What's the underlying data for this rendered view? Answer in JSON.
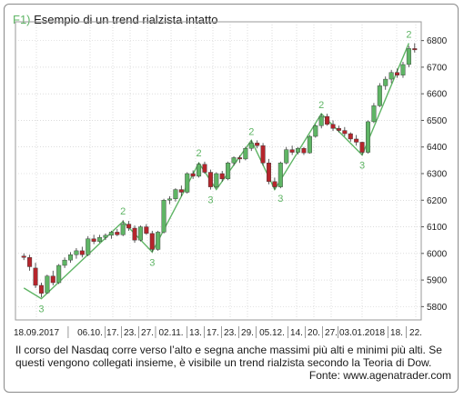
{
  "figure": {
    "label": "F1)",
    "title": "Esempio di un trend rialzista intatto",
    "caption": "Il corso del Nasdaq corre verso l’alto e segna anche massimi più alti e minimi più alti. Se questi vengono collegati insieme, è visibile un trend rialzista secondo la Teoria di Dow.",
    "source": "Fonte: www.agenatrader.com"
  },
  "colors": {
    "up": "#5fb565",
    "down": "#b5252c",
    "trendline": "#5fb565",
    "grid": "#c8c8c8",
    "wave_label": "#5fb565"
  },
  "chart_data": {
    "type": "candlestick",
    "title": "",
    "xlabel": "",
    "ylabel": "",
    "ylim": [
      5750,
      6850
    ],
    "y_ticks": [
      5800,
      5900,
      6000,
      6100,
      6200,
      6300,
      6400,
      6500,
      6600,
      6700,
      6800
    ],
    "grid": true,
    "x_tick_labels": [
      "18.09.2017",
      "06.10.",
      "17.",
      "23.",
      "27.",
      "02.11.",
      "13.",
      "17.",
      "23.",
      "29.",
      "05.12.",
      "14.",
      "20.",
      "27.",
      "03.01.2018",
      "18.",
      "22."
    ],
    "ohlc": [
      {
        "o": 5990,
        "h": 6000,
        "l": 5975,
        "c": 5985
      },
      {
        "o": 5985,
        "h": 5995,
        "l": 5935,
        "c": 5950
      },
      {
        "o": 5945,
        "h": 5965,
        "l": 5870,
        "c": 5880
      },
      {
        "o": 5880,
        "h": 5890,
        "l": 5835,
        "c": 5850
      },
      {
        "o": 5852,
        "h": 5920,
        "l": 5848,
        "c": 5915
      },
      {
        "o": 5915,
        "h": 5935,
        "l": 5880,
        "c": 5890
      },
      {
        "o": 5890,
        "h": 5960,
        "l": 5885,
        "c": 5955
      },
      {
        "o": 5955,
        "h": 5985,
        "l": 5945,
        "c": 5975
      },
      {
        "o": 5975,
        "h": 6005,
        "l": 5965,
        "c": 5995
      },
      {
        "o": 5995,
        "h": 6020,
        "l": 5980,
        "c": 6010
      },
      {
        "o": 6010,
        "h": 6025,
        "l": 5985,
        "c": 5995
      },
      {
        "o": 5995,
        "h": 6065,
        "l": 5990,
        "c": 6055
      },
      {
        "o": 6055,
        "h": 6070,
        "l": 6035,
        "c": 6045
      },
      {
        "o": 6045,
        "h": 6070,
        "l": 6040,
        "c": 6060
      },
      {
        "o": 6060,
        "h": 6075,
        "l": 6050,
        "c": 6068
      },
      {
        "o": 6068,
        "h": 6085,
        "l": 6055,
        "c": 6080
      },
      {
        "o": 6080,
        "h": 6092,
        "l": 6065,
        "c": 6070
      },
      {
        "o": 6070,
        "h": 6125,
        "l": 6065,
        "c": 6110
      },
      {
        "o": 6110,
        "h": 6122,
        "l": 6085,
        "c": 6095
      },
      {
        "o": 6095,
        "h": 6105,
        "l": 6040,
        "c": 6050
      },
      {
        "o": 6050,
        "h": 6105,
        "l": 6045,
        "c": 6100
      },
      {
        "o": 6100,
        "h": 6110,
        "l": 6070,
        "c": 6075
      },
      {
        "o": 6075,
        "h": 6085,
        "l": 6005,
        "c": 6015
      },
      {
        "o": 6015,
        "h": 6085,
        "l": 6010,
        "c": 6080
      },
      {
        "o": 6080,
        "h": 6205,
        "l": 6075,
        "c": 6200
      },
      {
        "o": 6200,
        "h": 6215,
        "l": 6185,
        "c": 6205
      },
      {
        "o": 6205,
        "h": 6245,
        "l": 6195,
        "c": 6240
      },
      {
        "o": 6240,
        "h": 6255,
        "l": 6215,
        "c": 6230
      },
      {
        "o": 6230,
        "h": 6305,
        "l": 6225,
        "c": 6300
      },
      {
        "o": 6300,
        "h": 6312,
        "l": 6280,
        "c": 6290
      },
      {
        "o": 6290,
        "h": 6340,
        "l": 6285,
        "c": 6335
      },
      {
        "o": 6335,
        "h": 6345,
        "l": 6300,
        "c": 6305
      },
      {
        "o": 6305,
        "h": 6315,
        "l": 6240,
        "c": 6250
      },
      {
        "o": 6250,
        "h": 6305,
        "l": 6245,
        "c": 6300
      },
      {
        "o": 6300,
        "h": 6310,
        "l": 6270,
        "c": 6280
      },
      {
        "o": 6280,
        "h": 6345,
        "l": 6275,
        "c": 6340
      },
      {
        "o": 6340,
        "h": 6365,
        "l": 6330,
        "c": 6360
      },
      {
        "o": 6360,
        "h": 6368,
        "l": 6340,
        "c": 6355
      },
      {
        "o": 6355,
        "h": 6400,
        "l": 6350,
        "c": 6395
      },
      {
        "o": 6395,
        "h": 6425,
        "l": 6385,
        "c": 6415
      },
      {
        "o": 6415,
        "h": 6425,
        "l": 6395,
        "c": 6405
      },
      {
        "o": 6405,
        "h": 6415,
        "l": 6330,
        "c": 6340
      },
      {
        "o": 6340,
        "h": 6355,
        "l": 6260,
        "c": 6270
      },
      {
        "o": 6270,
        "h": 6285,
        "l": 6240,
        "c": 6250
      },
      {
        "o": 6250,
        "h": 6345,
        "l": 6245,
        "c": 6340
      },
      {
        "o": 6340,
        "h": 6400,
        "l": 6335,
        "c": 6390
      },
      {
        "o": 6390,
        "h": 6405,
        "l": 6370,
        "c": 6380
      },
      {
        "o": 6380,
        "h": 6400,
        "l": 6372,
        "c": 6395
      },
      {
        "o": 6395,
        "h": 6400,
        "l": 6370,
        "c": 6378
      },
      {
        "o": 6378,
        "h": 6445,
        "l": 6375,
        "c": 6440
      },
      {
        "o": 6440,
        "h": 6485,
        "l": 6435,
        "c": 6480
      },
      {
        "o": 6480,
        "h": 6525,
        "l": 6470,
        "c": 6515
      },
      {
        "o": 6515,
        "h": 6525,
        "l": 6480,
        "c": 6485
      },
      {
        "o": 6485,
        "h": 6500,
        "l": 6460,
        "c": 6470
      },
      {
        "o": 6470,
        "h": 6480,
        "l": 6455,
        "c": 6462
      },
      {
        "o": 6462,
        "h": 6475,
        "l": 6440,
        "c": 6450
      },
      {
        "o": 6450,
        "h": 6455,
        "l": 6420,
        "c": 6430
      },
      {
        "o": 6430,
        "h": 6445,
        "l": 6405,
        "c": 6418
      },
      {
        "o": 6418,
        "h": 6420,
        "l": 6370,
        "c": 6380
      },
      {
        "o": 6380,
        "h": 6500,
        "l": 6375,
        "c": 6495
      },
      {
        "o": 6495,
        "h": 6565,
        "l": 6490,
        "c": 6555
      },
      {
        "o": 6555,
        "h": 6640,
        "l": 6550,
        "c": 6630
      },
      {
        "o": 6630,
        "h": 6665,
        "l": 6615,
        "c": 6655
      },
      {
        "o": 6655,
        "h": 6690,
        "l": 6640,
        "c": 6680
      },
      {
        "o": 6680,
        "h": 6695,
        "l": 6660,
        "c": 6670
      },
      {
        "o": 6670,
        "h": 6720,
        "l": 6660,
        "c": 6710
      },
      {
        "o": 6710,
        "h": 6780,
        "l": 6700,
        "c": 6770
      },
      {
        "o": 6770,
        "h": 6790,
        "l": 6755,
        "c": 6765
      }
    ],
    "trendline": [
      {
        "i": 0,
        "y": 5870
      },
      {
        "i": 3,
        "y": 5830
      },
      {
        "i": 17,
        "y": 6120
      },
      {
        "i": 22,
        "y": 6005
      },
      {
        "i": 30,
        "y": 6340
      },
      {
        "i": 33,
        "y": 6240
      },
      {
        "i": 39,
        "y": 6425
      },
      {
        "i": 43,
        "y": 6240
      },
      {
        "i": 51,
        "y": 6525
      },
      {
        "i": 58,
        "y": 6370
      },
      {
        "i": 66,
        "y": 6790
      }
    ],
    "wave_labels": [
      {
        "i": 3,
        "y": 5830,
        "text": "3",
        "pos": "below"
      },
      {
        "i": 17,
        "y": 6125,
        "text": "2",
        "pos": "above"
      },
      {
        "i": 22,
        "y": 6005,
        "text": "3",
        "pos": "below"
      },
      {
        "i": 30,
        "y": 6345,
        "text": "2",
        "pos": "above"
      },
      {
        "i": 32,
        "y": 6240,
        "text": "3",
        "pos": "below"
      },
      {
        "i": 39,
        "y": 6425,
        "text": "2",
        "pos": "above"
      },
      {
        "i": 44,
        "y": 6245,
        "text": "3",
        "pos": "below"
      },
      {
        "i": 51,
        "y": 6525,
        "text": "2",
        "pos": "above"
      },
      {
        "i": 58,
        "y": 6370,
        "text": "3",
        "pos": "below"
      },
      {
        "i": 66,
        "y": 6790,
        "text": "2",
        "pos": "above"
      }
    ]
  }
}
